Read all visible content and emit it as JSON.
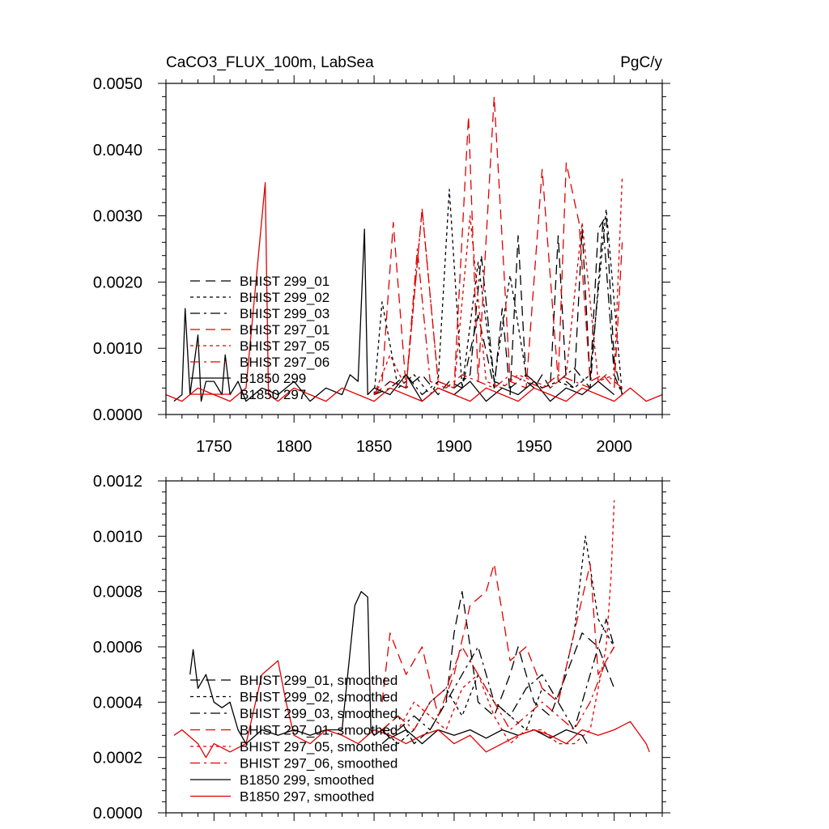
{
  "colors": {
    "black": "#000000",
    "red": "#e00000"
  },
  "chart_data": [
    {
      "type": "line",
      "title": "CaCO3_FLUX_100m, LabSea",
      "units": "PgC/y",
      "xlim": [
        1720,
        2030
      ],
      "ylim": [
        0,
        0.005
      ],
      "x_ticks": [
        1750,
        1800,
        1850,
        1900,
        1950,
        2000
      ],
      "x_tick_labels": [
        "1750",
        "1800",
        "1850",
        "1900",
        "1950",
        "2000"
      ],
      "y_ticks": [
        0,
        0.001,
        0.002,
        0.003,
        0.004,
        0.005
      ],
      "y_tick_labels": [
        "0.0000",
        "0.0010",
        "0.0020",
        "0.0030",
        "0.0040",
        "0.0050"
      ],
      "legend_position": "lower-left",
      "series": [
        {
          "name": "BHIST 299_01",
          "color": "#000000",
          "dash": "long-dash",
          "x": [
            1850,
            1860,
            1870,
            1880,
            1890,
            1897,
            1905,
            1915,
            1925,
            1930,
            1935,
            1940,
            1945,
            1950,
            1955,
            1960,
            1965,
            1970,
            1975,
            1980,
            1985,
            1990,
            1995,
            2000,
            2005
          ],
          "y": [
            0.0003,
            0.0005,
            0.0004,
            0.0006,
            0.0003,
            0.0005,
            0.0004,
            0.0015,
            0.0004,
            0.0016,
            0.0003,
            0.0027,
            0.0005,
            0.0004,
            0.0006,
            0.0004,
            0.0027,
            0.0005,
            0.0004,
            0.0028,
            0.0005,
            0.0028,
            0.003,
            0.0008,
            0.0003
          ]
        },
        {
          "name": "BHIST 299_02",
          "color": "#000000",
          "dash": "short-dash",
          "x": [
            1850,
            1855,
            1865,
            1875,
            1885,
            1890,
            1897,
            1905,
            1915,
            1925,
            1935,
            1945,
            1955,
            1965,
            1975,
            1985,
            1995,
            2005
          ],
          "y": [
            0.0003,
            0.0017,
            0.0004,
            0.0006,
            0.0003,
            0.0005,
            0.0034,
            0.0004,
            0.0023,
            0.0005,
            0.0021,
            0.0006,
            0.0004,
            0.0005,
            0.0004,
            0.0006,
            0.0031,
            0.0003
          ]
        },
        {
          "name": "BHIST 299_03",
          "color": "#000000",
          "dash": "dash-dot",
          "x": [
            1850,
            1860,
            1870,
            1880,
            1890,
            1900,
            1910,
            1917,
            1925,
            1935,
            1945,
            1955,
            1965,
            1975,
            1985,
            1993,
            2000,
            2005
          ],
          "y": [
            0.0003,
            0.0004,
            0.0006,
            0.0003,
            0.0005,
            0.0004,
            0.0006,
            0.0024,
            0.0005,
            0.0004,
            0.0006,
            0.0004,
            0.0005,
            0.0007,
            0.0004,
            0.0029,
            0.0006,
            0.0003
          ]
        },
        {
          "name": "BHIST 297_01",
          "color": "#e00000",
          "dash": "long-dash",
          "x": [
            1850,
            1855,
            1862,
            1870,
            1880,
            1890,
            1900,
            1909,
            1915,
            1925,
            1935,
            1945,
            1955,
            1965,
            1970,
            1978,
            1985,
            1993,
            2000,
            2005
          ],
          "y": [
            0.0003,
            0.0005,
            0.0029,
            0.0004,
            0.0031,
            0.0005,
            0.0004,
            0.0045,
            0.0005,
            0.0048,
            0.0005,
            0.0004,
            0.0037,
            0.0005,
            0.0038,
            0.0029,
            0.0005,
            0.0006,
            0.0004,
            0.0026
          ]
        },
        {
          "name": "BHIST 297_05",
          "color": "#e00000",
          "dash": "short-dash",
          "x": [
            1850,
            1860,
            1870,
            1880,
            1890,
            1900,
            1910,
            1920,
            1930,
            1940,
            1950,
            1960,
            1970,
            1980,
            1990,
            2000,
            2005
          ],
          "y": [
            0.0003,
            0.0009,
            0.0004,
            0.0031,
            0.0005,
            0.0004,
            0.003,
            0.0005,
            0.0004,
            0.0006,
            0.0005,
            0.0004,
            0.0006,
            0.0029,
            0.0005,
            0.0006,
            0.0036
          ]
        },
        {
          "name": "BHIST 297_06",
          "color": "#e00000",
          "dash": "dash-dot",
          "x": [
            1850,
            1860,
            1870,
            1877,
            1885,
            1895,
            1905,
            1915,
            1925,
            1935,
            1945,
            1955,
            1965,
            1975,
            1985,
            1995,
            2005
          ],
          "y": [
            0.0003,
            0.0005,
            0.0004,
            0.0025,
            0.0005,
            0.0004,
            0.0006,
            0.0005,
            0.0004,
            0.0006,
            0.0005,
            0.0004,
            0.0006,
            0.0005,
            0.0004,
            0.0006,
            0.0004
          ]
        },
        {
          "name": "B1850 299",
          "color": "#000000",
          "dash": "solid",
          "x": [
            1725,
            1730,
            1732,
            1735,
            1740,
            1742,
            1745,
            1750,
            1755,
            1757,
            1760,
            1765,
            1770,
            1780,
            1790,
            1800,
            1810,
            1820,
            1830,
            1835,
            1840,
            1844,
            1846,
            1850,
            1860,
            1870,
            1880,
            1890,
            1900,
            1910,
            1920,
            1930,
            1940,
            1950,
            1960,
            1970,
            1980,
            1990,
            2000
          ],
          "y": [
            0.0002,
            0.0003,
            0.0016,
            0.0003,
            0.0012,
            0.0002,
            0.0005,
            0.0005,
            0.0003,
            0.0009,
            0.0003,
            0.0005,
            0.0002,
            0.0004,
            0.0003,
            0.0005,
            0.0002,
            0.0004,
            0.0003,
            0.0006,
            0.0005,
            0.0028,
            0.0003,
            0.0004,
            0.0003,
            0.0006,
            0.0002,
            0.0004,
            0.0003,
            0.0005,
            0.0002,
            0.0004,
            0.0003,
            0.0005,
            0.0002,
            0.0004,
            0.0003,
            0.0005,
            0.0003
          ]
        },
        {
          "name": "B1850 297",
          "color": "#e00000",
          "dash": "solid",
          "x": [
            1720,
            1730,
            1740,
            1750,
            1760,
            1770,
            1782,
            1784,
            1790,
            1800,
            1810,
            1820,
            1830,
            1840,
            1850,
            1860,
            1870,
            1880,
            1890,
            1900,
            1910,
            1920,
            1930,
            1940,
            1950,
            1960,
            1970,
            1980,
            1990,
            2000,
            2010,
            2020,
            2030
          ],
          "y": [
            0.0003,
            0.0002,
            0.0004,
            0.0003,
            0.0002,
            0.0004,
            0.0035,
            0.0003,
            0.0002,
            0.0004,
            0.0003,
            0.0002,
            0.0004,
            0.0003,
            0.0002,
            0.0004,
            0.0003,
            0.0002,
            0.0004,
            0.0003,
            0.0002,
            0.0004,
            0.0003,
            0.0002,
            0.0004,
            0.0003,
            0.0002,
            0.0004,
            0.0003,
            0.0002,
            0.0004,
            0.0002,
            0.0003
          ]
        }
      ]
    },
    {
      "type": "line",
      "xlim": [
        1720,
        2030
      ],
      "ylim": [
        0,
        0.0012
      ],
      "x_ticks": [
        1750,
        1800,
        1850,
        1900,
        1950,
        2000
      ],
      "y_ticks": [
        0,
        0.0002,
        0.0004,
        0.0006,
        0.0008,
        0.001,
        0.0012
      ],
      "y_tick_labels": [
        "0.0000",
        "0.0002",
        "0.0004",
        "0.0006",
        "0.0008",
        "0.0010",
        "0.0012"
      ],
      "legend_position": "lower-left",
      "series": [
        {
          "name": "BHIST 299_01, smoothed",
          "color": "#000000",
          "dash": "long-dash",
          "x": [
            1855,
            1865,
            1875,
            1885,
            1895,
            1900,
            1905,
            1915,
            1925,
            1935,
            1940,
            1950,
            1960,
            1970,
            1980,
            1990,
            2000
          ],
          "y": [
            0.0003,
            0.00035,
            0.00025,
            0.0003,
            0.0004,
            0.00065,
            0.0008,
            0.0004,
            0.00035,
            0.0005,
            0.0006,
            0.0004,
            0.00035,
            0.0005,
            0.00065,
            0.0006,
            0.00045
          ]
        },
        {
          "name": "BHIST 299_02, smoothed",
          "color": "#000000",
          "dash": "short-dash",
          "x": [
            1855,
            1865,
            1875,
            1885,
            1895,
            1905,
            1915,
            1925,
            1935,
            1945,
            1955,
            1965,
            1975,
            1982,
            1990,
            2000
          ],
          "y": [
            0.0003,
            0.00025,
            0.0003,
            0.0004,
            0.00045,
            0.00035,
            0.0005,
            0.0004,
            0.00035,
            0.0003,
            0.00045,
            0.0004,
            0.00065,
            0.001,
            0.0007,
            0.0006
          ]
        },
        {
          "name": "BHIST 299_03, smoothed",
          "color": "#000000",
          "dash": "dash-dot",
          "x": [
            1855,
            1865,
            1875,
            1885,
            1895,
            1905,
            1915,
            1925,
            1935,
            1945,
            1955,
            1965,
            1975,
            1985,
            1995,
            2000
          ],
          "y": [
            0.00025,
            0.0003,
            0.00035,
            0.0003,
            0.0004,
            0.0005,
            0.0006,
            0.0004,
            0.00035,
            0.00045,
            0.0005,
            0.0004,
            0.0003,
            0.0005,
            0.0007,
            0.0006
          ]
        },
        {
          "name": "BHIST 297_01, smoothed",
          "color": "#e00000",
          "dash": "long-dash",
          "x": [
            1855,
            1860,
            1870,
            1880,
            1890,
            1900,
            1910,
            1920,
            1925,
            1935,
            1945,
            1955,
            1965,
            1975,
            1985,
            1990,
            2000
          ],
          "y": [
            0.0004,
            0.00065,
            0.0005,
            0.0006,
            0.00035,
            0.0005,
            0.00075,
            0.0008,
            0.0009,
            0.00055,
            0.0006,
            0.00045,
            0.0004,
            0.00065,
            0.0009,
            0.0005,
            0.0006
          ]
        },
        {
          "name": "BHIST 297_05, smoothed",
          "color": "#e00000",
          "dash": "short-dash",
          "x": [
            1855,
            1865,
            1875,
            1885,
            1895,
            1905,
            1915,
            1925,
            1935,
            1945,
            1955,
            1965,
            1975,
            1985,
            1995,
            1998,
            2000
          ],
          "y": [
            0.0003,
            0.0003,
            0.0004,
            0.00035,
            0.0003,
            0.00045,
            0.0005,
            0.00035,
            0.00025,
            0.0003,
            0.0003,
            0.00025,
            0.00025,
            0.0003,
            0.0006,
            0.00085,
            0.00113
          ]
        },
        {
          "name": "BHIST 297_06, smoothed",
          "color": "#e00000",
          "dash": "dash-dot",
          "x": [
            1855,
            1865,
            1875,
            1885,
            1895,
            1905,
            1915,
            1925,
            1935,
            1945,
            1955,
            1965,
            1975,
            1985,
            1995,
            2000
          ],
          "y": [
            0.0003,
            0.00035,
            0.0003,
            0.0004,
            0.00045,
            0.0006,
            0.0005,
            0.0004,
            0.0003,
            0.00035,
            0.0004,
            0.00035,
            0.0003,
            0.0004,
            0.00055,
            0.0006
          ]
        },
        {
          "name": "B1850 299, smoothed",
          "color": "#000000",
          "dash": "solid",
          "x": [
            1735,
            1737,
            1740,
            1745,
            1750,
            1755,
            1760,
            1765,
            1770,
            1780,
            1790,
            1800,
            1810,
            1820,
            1830,
            1838,
            1842,
            1846,
            1848,
            1850,
            1855,
            1860,
            1870,
            1880,
            1890,
            1900,
            1910,
            1920,
            1930,
            1940,
            1950,
            1960,
            1970,
            1980,
            1983
          ],
          "y": [
            0.0005,
            0.00059,
            0.00045,
            0.0005,
            0.0004,
            0.00038,
            0.0004,
            0.0003,
            0.00025,
            0.0003,
            0.00028,
            0.0003,
            0.00028,
            0.0003,
            0.0003,
            0.00075,
            0.0008,
            0.00078,
            0.0003,
            0.00028,
            0.0003,
            0.00027,
            0.0003,
            0.00025,
            0.0003,
            0.00028,
            0.0003,
            0.00027,
            0.0003,
            0.00028,
            0.0003,
            0.00027,
            0.0003,
            0.00028,
            0.00025
          ]
        },
        {
          "name": "B1850 297, smoothed",
          "color": "#e00000",
          "dash": "solid",
          "x": [
            1725,
            1730,
            1740,
            1745,
            1750,
            1760,
            1770,
            1780,
            1790,
            1795,
            1800,
            1810,
            1820,
            1830,
            1840,
            1850,
            1860,
            1870,
            1880,
            1890,
            1900,
            1910,
            1920,
            1930,
            1940,
            1950,
            1960,
            1970,
            1980,
            1990,
            2000,
            2010,
            2020,
            2022
          ],
          "y": [
            0.00028,
            0.0003,
            0.00025,
            0.0002,
            0.00025,
            0.00022,
            0.00025,
            0.0005,
            0.00055,
            0.0004,
            0.00028,
            0.00025,
            0.0003,
            0.00028,
            0.00025,
            0.0003,
            0.00028,
            0.00025,
            0.00028,
            0.0003,
            0.00025,
            0.00028,
            0.00022,
            0.00025,
            0.00028,
            0.0003,
            0.00028,
            0.00025,
            0.0003,
            0.00028,
            0.0003,
            0.00033,
            0.00025,
            0.00022
          ]
        }
      ]
    }
  ]
}
